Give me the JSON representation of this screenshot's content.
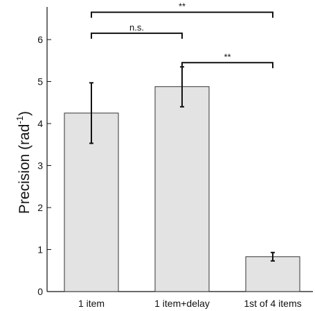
{
  "chart_data": {
    "type": "bar",
    "categories": [
      "1 item",
      "1 item+delay",
      "1st of 4 items"
    ],
    "values": [
      4.25,
      4.88,
      0.83
    ],
    "error_low": [
      3.53,
      4.4,
      0.73
    ],
    "error_high": [
      4.97,
      5.35,
      0.93
    ],
    "ylabel_main": "Precision (rad",
    "ylabel_sup": "-1",
    "ylabel_close": ")",
    "xlabel": "",
    "ylim": [
      0,
      7
    ],
    "yticks": [
      0,
      1,
      2,
      3,
      4,
      5,
      6
    ],
    "grid": false,
    "bar_color": "#e3e3e3",
    "edge_color": "#333333",
    "annotations": [
      {
        "from": 0,
        "to": 1,
        "label": "n.s.",
        "y": 6.15
      },
      {
        "from": 1,
        "to": 2,
        "label": "**",
        "y": 5.45
      },
      {
        "from": 0,
        "to": 2,
        "label": "**",
        "y": 6.65
      }
    ]
  }
}
